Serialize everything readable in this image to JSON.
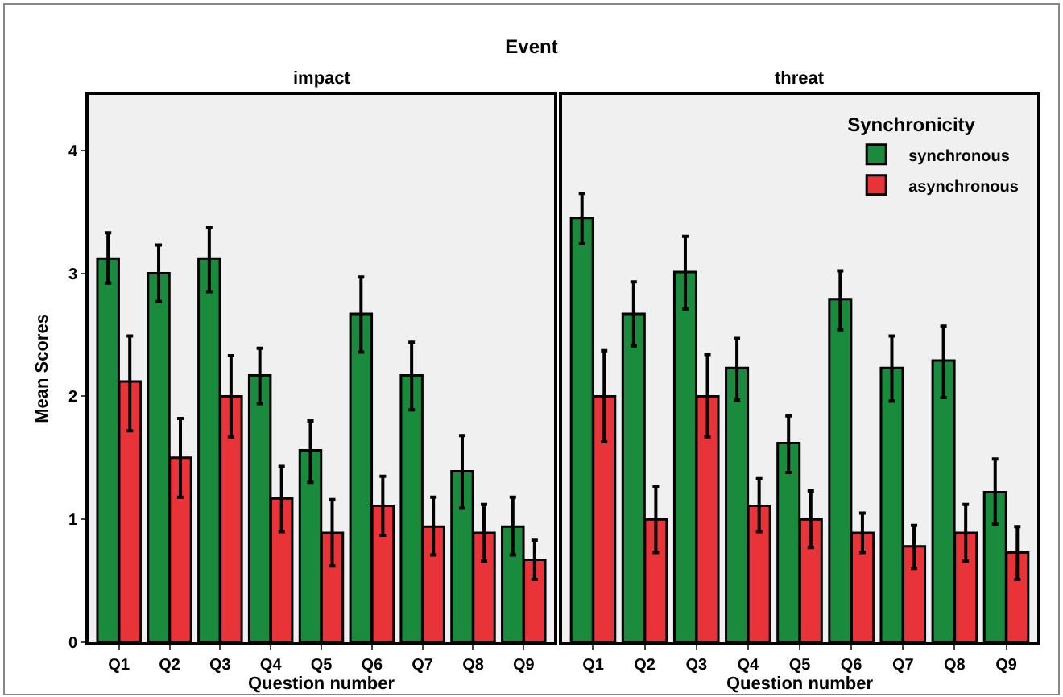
{
  "chart_data": [
    {
      "type": "bar",
      "title": "Event",
      "subtitle": "impact",
      "xlabel": "Question number",
      "ylabel": "Mean Scores",
      "categories": [
        "Q1",
        "Q2",
        "Q3",
        "Q4",
        "Q5",
        "Q6",
        "Q7",
        "Q8",
        "Q9"
      ],
      "series": [
        {
          "color": "#1a8a3c",
          "values": [
            3.12,
            3.0,
            3.12,
            2.17,
            1.56,
            2.67,
            2.17,
            1.39,
            0.94
          ],
          "errors": [
            [
              2.92,
              3.33
            ],
            [
              2.77,
              3.23
            ],
            [
              2.85,
              3.37
            ],
            [
              1.94,
              2.39
            ],
            [
              1.3,
              1.8
            ],
            [
              2.36,
              2.97
            ],
            [
              1.89,
              2.44
            ],
            [
              1.09,
              1.68
            ],
            [
              0.71,
              1.18
            ]
          ]
        },
        {
          "color": "#e83338",
          "values": [
            2.12,
            1.5,
            2.0,
            1.17,
            0.89,
            1.11,
            0.94,
            0.89,
            0.67
          ],
          "errors": [
            [
              1.72,
              2.49
            ],
            [
              1.18,
              1.82
            ],
            [
              1.67,
              2.33
            ],
            [
              0.9,
              1.43
            ],
            [
              0.62,
              1.16
            ],
            [
              0.87,
              1.35
            ],
            [
              0.71,
              1.18
            ],
            [
              0.66,
              1.12
            ],
            [
              0.51,
              0.83
            ]
          ]
        }
      ],
      "ylim": [
        0,
        4.45
      ],
      "yticks": [
        0,
        1,
        2,
        3,
        4
      ],
      "grid": false,
      "legend": false
    },
    {
      "type": "bar",
      "title": "threat",
      "xlabel": "Question number",
      "legend_title": "Synchronicity",
      "categories": [
        "Q1",
        "Q2",
        "Q3",
        "Q4",
        "Q5",
        "Q6",
        "Q7",
        "Q8",
        "Q9"
      ],
      "series": [
        {
          "name": "synchronous",
          "color": "#1a8a3c",
          "values": [
            3.45,
            2.67,
            3.01,
            2.23,
            1.62,
            2.79,
            2.23,
            2.29,
            1.22
          ],
          "errors": [
            [
              3.24,
              3.65
            ],
            [
              2.41,
              2.93
            ],
            [
              2.71,
              3.3
            ],
            [
              1.97,
              2.47
            ],
            [
              1.38,
              1.84
            ],
            [
              2.54,
              3.02
            ],
            [
              1.96,
              2.49
            ],
            [
              1.99,
              2.57
            ],
            [
              0.96,
              1.49
            ]
          ]
        },
        {
          "name": "asynchronous",
          "color": "#e83338",
          "values": [
            2.0,
            1.0,
            2.0,
            1.11,
            1.0,
            0.89,
            0.78,
            0.89,
            0.73
          ],
          "errors": [
            [
              1.63,
              2.37
            ],
            [
              0.73,
              1.27
            ],
            [
              1.67,
              2.34
            ],
            [
              0.9,
              1.33
            ],
            [
              0.77,
              1.23
            ],
            [
              0.73,
              1.05
            ],
            [
              0.6,
              0.95
            ],
            [
              0.66,
              1.12
            ],
            [
              0.51,
              0.94
            ]
          ]
        }
      ],
      "ylim": [
        0,
        4.45
      ],
      "yticks": [
        0,
        1,
        2,
        3,
        4
      ],
      "grid": false,
      "legend": "top right",
      "tick_labels": "x"
    }
  ]
}
